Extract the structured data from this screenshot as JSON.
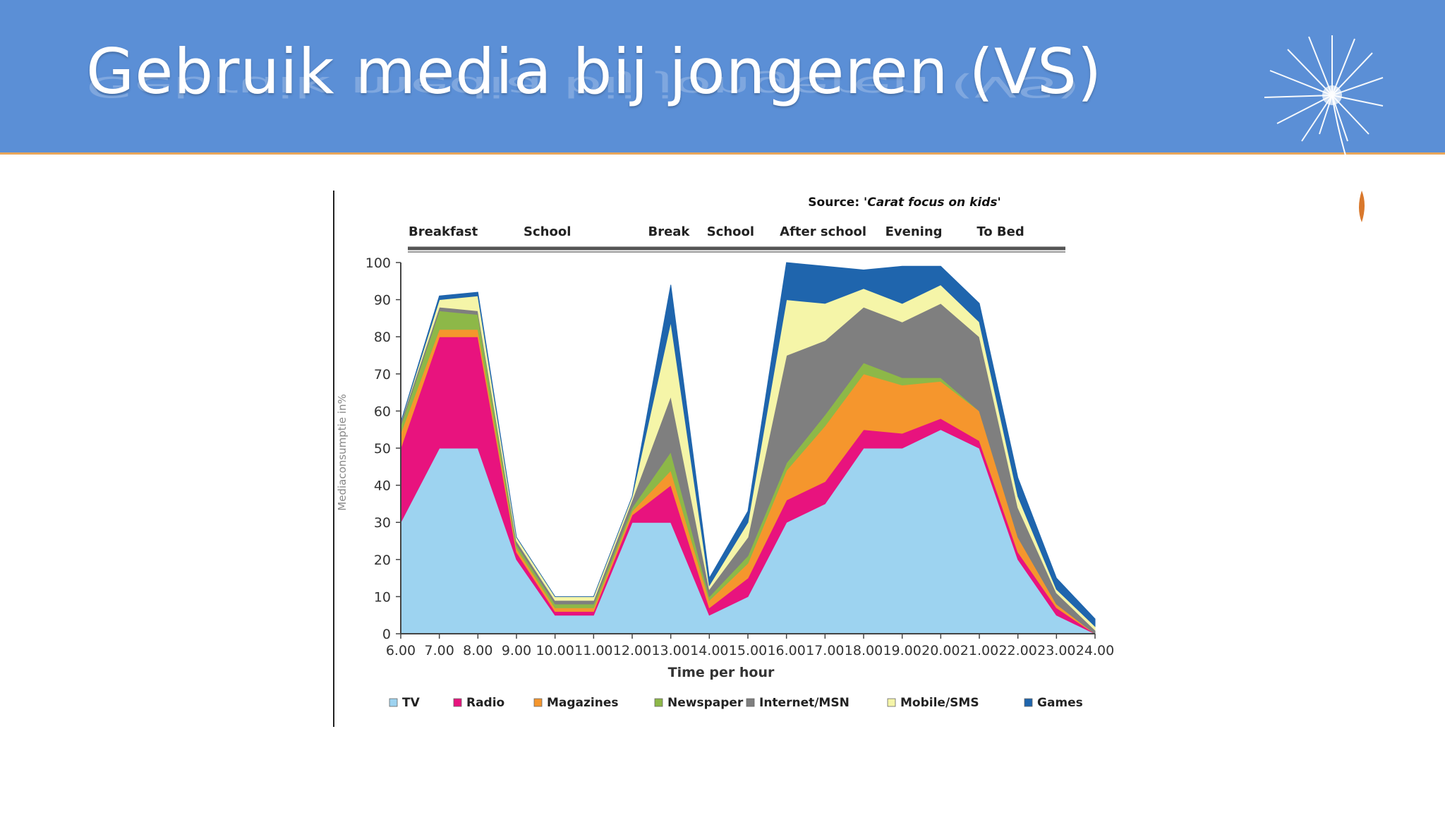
{
  "slide": {
    "title": "Gebruik media bij jongeren (VS)"
  },
  "icons": {
    "decoration": "dandelion-seed-icon"
  },
  "chart_data": {
    "type": "area",
    "stacked": true,
    "source_text": "Source: 'Carat focus on kids'",
    "source_prefix": "Source: ",
    "source_title": "'Carat focus on kids'",
    "phases": [
      "Breakfast",
      "School",
      "Break",
      "School",
      "After school",
      "Evening",
      "To Bed"
    ],
    "xlabel": "Time per hour",
    "ylabel": "Mediaconsumptie in%",
    "ylim": [
      0,
      100
    ],
    "yticks": [
      0,
      10,
      20,
      30,
      40,
      50,
      60,
      70,
      80,
      90,
      100
    ],
    "x": [
      "6.00",
      "7.00",
      "8.00",
      "9.00",
      "10.00",
      "11.00",
      "12.00",
      "13.00",
      "14.00",
      "15.00",
      "16.00",
      "17.00",
      "18.00",
      "19.00",
      "20.00",
      "21.00",
      "22.00",
      "23.00",
      "24.00"
    ],
    "series": [
      {
        "name": "TV",
        "color": "#9dd3f0",
        "values": [
          30,
          50,
          50,
          20,
          5,
          5,
          30,
          30,
          5,
          10,
          30,
          35,
          50,
          50,
          55,
          50,
          20,
          5,
          0
        ]
      },
      {
        "name": "Radio",
        "color": "#e8137e",
        "values": [
          20,
          30,
          30,
          2,
          1,
          1,
          2,
          10,
          2,
          5,
          6,
          6,
          5,
          4,
          3,
          2,
          2,
          2,
          0
        ]
      },
      {
        "name": "Magazines",
        "color": "#f5962d",
        "values": [
          4,
          2,
          2,
          1,
          1,
          1,
          1,
          4,
          2,
          4,
          8,
          15,
          15,
          13,
          10,
          8,
          4,
          1,
          0
        ]
      },
      {
        "name": "Newspaper",
        "color": "#8db848",
        "values": [
          2,
          5,
          4,
          1,
          1,
          1,
          1,
          5,
          1,
          2,
          2,
          3,
          3,
          2,
          1,
          0,
          0,
          0,
          0
        ]
      },
      {
        "name": "Internet/MSN",
        "color": "#7f7f7f",
        "values": [
          1,
          1,
          1,
          1,
          1,
          1,
          2,
          15,
          2,
          5,
          29,
          20,
          15,
          15,
          20,
          20,
          8,
          3,
          1
        ]
      },
      {
        "name": "Mobile/SMS",
        "color": "#f5f5a8",
        "values": [
          0,
          2,
          4,
          1,
          1,
          1,
          1,
          20,
          1,
          4,
          15,
          10,
          5,
          5,
          5,
          4,
          3,
          1,
          1
        ]
      },
      {
        "name": "Games",
        "color": "#1f65ad",
        "values": [
          0,
          1,
          1,
          0,
          0,
          0,
          0,
          10,
          2,
          3,
          10,
          10,
          5,
          10,
          5,
          5,
          5,
          3,
          2
        ]
      }
    ],
    "legend_position": "bottom",
    "grid": false
  }
}
